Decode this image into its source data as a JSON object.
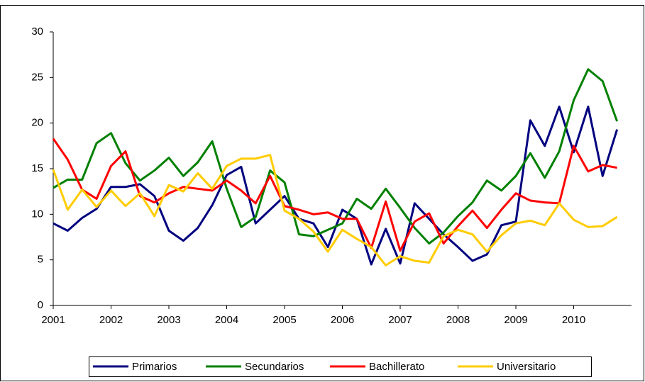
{
  "chart_data": {
    "type": "line",
    "x": [
      2001,
      2001.25,
      2001.5,
      2001.75,
      2002,
      2002.25,
      2002.5,
      2002.75,
      2003,
      2003.25,
      2003.5,
      2003.75,
      2004,
      2004.25,
      2004.5,
      2004.75,
      2005,
      2005.25,
      2005.5,
      2005.75,
      2006,
      2006.25,
      2006.5,
      2006.75,
      2007,
      2007.25,
      2007.5,
      2007.75,
      2008,
      2008.25,
      2008.5,
      2008.75,
      2009,
      2009.25,
      2009.5,
      2009.75,
      2010,
      2010.25,
      2010.5,
      2010.75
    ],
    "series": [
      {
        "name": "Primarios",
        "color": "#00007f",
        "values": [
          9.0,
          8.2,
          9.6,
          10.6,
          13.0,
          13.0,
          13.3,
          12.0,
          8.2,
          7.1,
          8.5,
          11.0,
          14.3,
          15.2,
          9.0,
          10.5,
          12.0,
          9.5,
          9.0,
          6.4,
          10.5,
          9.5,
          4.5,
          8.4,
          4.6,
          11.2,
          9.5,
          7.8,
          6.4,
          4.9,
          5.6,
          8.8,
          9.2,
          20.3,
          17.5,
          21.8,
          16.8,
          21.8,
          14.2,
          19.3
        ]
      },
      {
        "name": "Secundarios",
        "color": "#008000",
        "values": [
          12.9,
          13.8,
          13.8,
          17.8,
          18.9,
          15.6,
          13.7,
          14.8,
          16.2,
          14.2,
          15.7,
          18.0,
          12.8,
          8.6,
          9.7,
          14.8,
          13.5,
          7.8,
          7.6,
          8.3,
          9.0,
          11.7,
          10.6,
          12.8,
          10.7,
          8.5,
          6.8,
          8.0,
          9.8,
          11.3,
          13.7,
          12.6,
          14.2,
          16.7,
          14.0,
          16.9,
          22.5,
          25.9,
          24.6,
          20.2
        ]
      },
      {
        "name": "Bachillerato",
        "color": "#ff0000",
        "values": [
          18.3,
          16.0,
          12.7,
          11.7,
          15.3,
          16.9,
          12.0,
          11.3,
          12.3,
          13.0,
          12.8,
          12.6,
          13.7,
          12.6,
          11.2,
          14.2,
          10.9,
          10.5,
          10.0,
          10.2,
          9.5,
          9.5,
          6.3,
          11.4,
          6.0,
          9.2,
          10.1,
          6.8,
          8.7,
          10.4,
          8.5,
          10.5,
          12.3,
          11.5,
          11.3,
          11.2,
          17.5,
          14.7,
          15.4,
          15.1
        ]
      },
      {
        "name": "Universitario",
        "color": "#ffcc00",
        "values": [
          14.9,
          10.5,
          12.7,
          10.8,
          12.6,
          10.9,
          12.3,
          9.8,
          13.2,
          12.5,
          14.5,
          12.8,
          15.3,
          16.1,
          16.1,
          16.5,
          10.4,
          9.5,
          8.1,
          5.9,
          8.3,
          7.3,
          6.4,
          4.4,
          5.4,
          4.9,
          4.7,
          7.6,
          8.3,
          7.8,
          5.9,
          7.7,
          9.0,
          9.3,
          8.8,
          11.2,
          9.4,
          8.6,
          8.7,
          9.7
        ]
      }
    ],
    "xlim": [
      2001,
      2011
    ],
    "xticks": [
      2001,
      2002,
      2003,
      2004,
      2005,
      2006,
      2007,
      2008,
      2009,
      2010
    ],
    "ylim": [
      0,
      30
    ],
    "yticks": [
      0,
      5,
      10,
      15,
      20,
      25,
      30
    ],
    "grid": false,
    "legend": "bottom"
  }
}
